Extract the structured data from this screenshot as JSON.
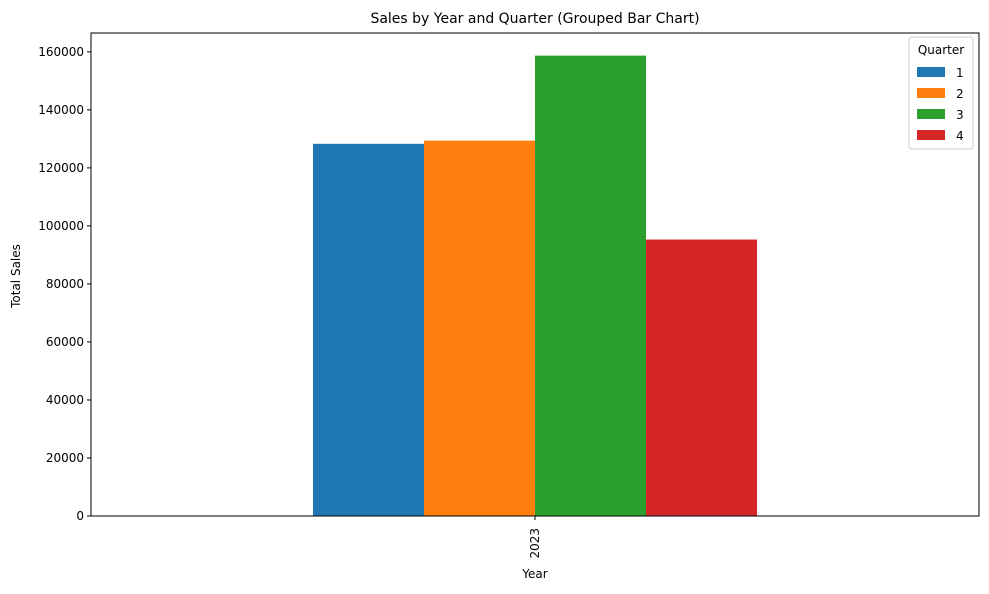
{
  "chart_data": {
    "type": "bar",
    "title": "Sales by Year and Quarter (Grouped Bar Chart)",
    "xlabel": "Year",
    "ylabel": "Total Sales",
    "categories": [
      "2023"
    ],
    "series": [
      {
        "name": "1",
        "values": [
          128300
        ],
        "color": "#1f77b4"
      },
      {
        "name": "2",
        "values": [
          129400
        ],
        "color": "#ff7f0e"
      },
      {
        "name": "3",
        "values": [
          158700
        ],
        "color": "#2ca02c"
      },
      {
        "name": "4",
        "values": [
          95300
        ],
        "color": "#d62728"
      }
    ],
    "ylim": [
      0,
      166500
    ],
    "yticks": [
      0,
      20000,
      40000,
      60000,
      80000,
      100000,
      120000,
      140000,
      160000
    ],
    "legend": {
      "title": "Quarter",
      "placement": "top-right"
    },
    "grid": false
  }
}
